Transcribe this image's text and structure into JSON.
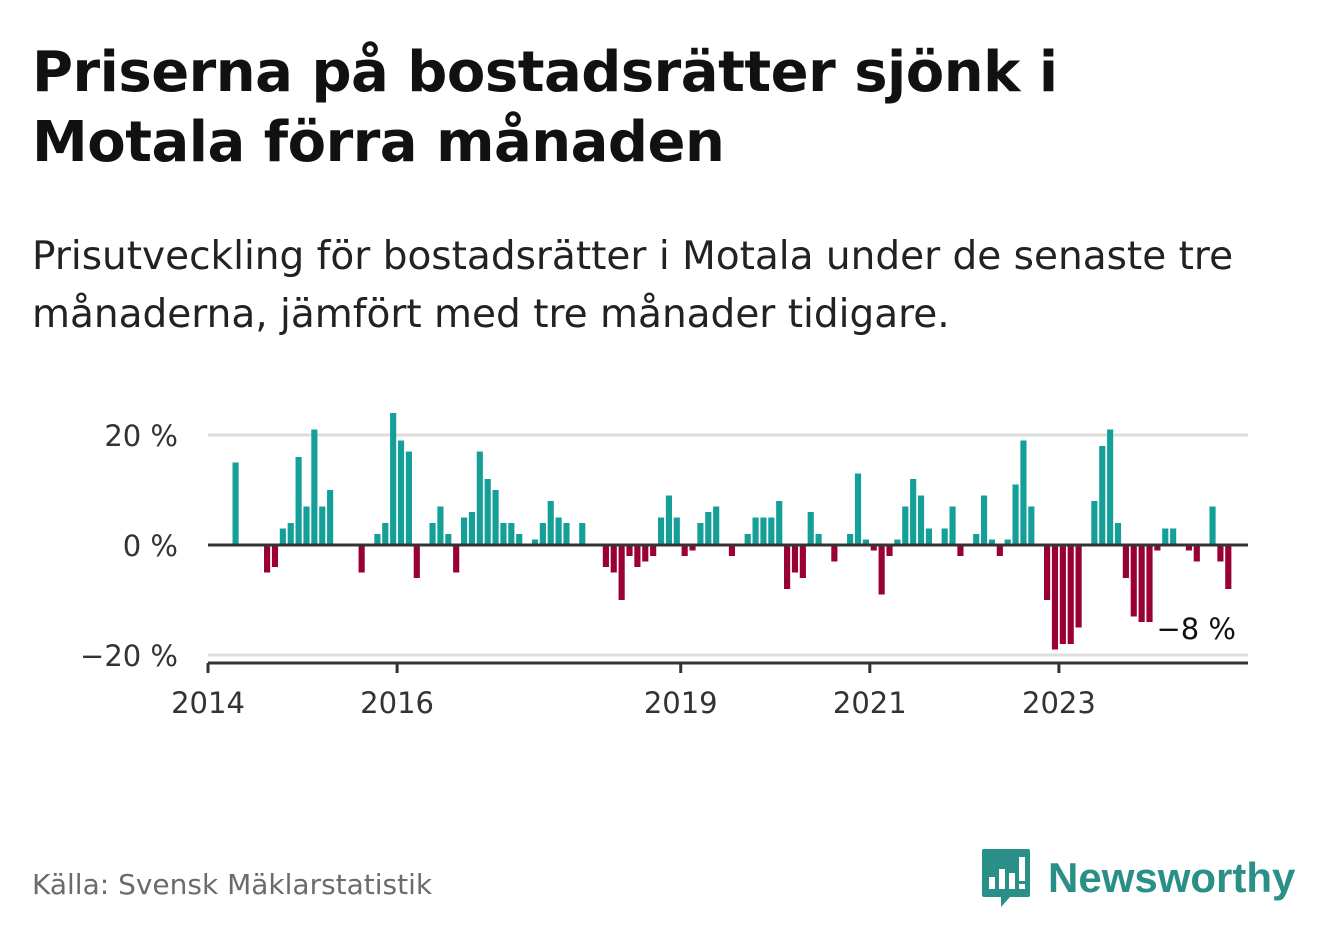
{
  "title": "Priserna på bostadsrätter sjönk i Motala förra månaden",
  "subtitle": "Prisutveckling för bostadsrätter i Motala under de senaste tre månaderna, jämfört med tre månader tidigare.",
  "source": "Källa: Svensk Mäklarstatistik",
  "brand": "Newsworthy",
  "colors": {
    "positive": "#14a098",
    "negative": "#990036",
    "brand": "#2a8f86",
    "gridline": "#dddddd",
    "axis": "#333333"
  },
  "chart_data": {
    "type": "bar",
    "x_start": "2014-01",
    "x_end": "2024-12",
    "first_month": "2014-04",
    "y_ticks": [
      20,
      0,
      -20
    ],
    "y_tick_labels": [
      "20 %",
      "0 %",
      "−20 %"
    ],
    "x_ticks": [
      "2014",
      "2016",
      "2019",
      "2021",
      "2023"
    ],
    "ylim": [
      -21,
      24
    ],
    "last_label": "−8 %",
    "values": [
      15,
      0,
      0,
      0,
      -5,
      -4,
      3,
      4,
      16,
      7,
      21,
      7,
      10,
      0,
      0,
      0,
      -5,
      0,
      2,
      4,
      24,
      19,
      17,
      -6,
      0,
      4,
      7,
      2,
      -5,
      5,
      6,
      17,
      12,
      10,
      4,
      4,
      2,
      0,
      1,
      4,
      8,
      5,
      4,
      0,
      4,
      0,
      0,
      -4,
      -5,
      -10,
      -2,
      -4,
      -3,
      -2,
      5,
      9,
      5,
      -2,
      -1,
      4,
      6,
      7,
      0,
      -2,
      0,
      2,
      5,
      5,
      5,
      8,
      -8,
      -5,
      -6,
      6,
      2,
      0,
      -3,
      0,
      2,
      13,
      1,
      -1,
      -9,
      -2,
      1,
      7,
      12,
      9,
      3,
      0,
      3,
      7,
      -2,
      0,
      2,
      9,
      1,
      -2,
      1,
      11,
      19,
      7,
      0,
      -10,
      -19,
      -18,
      -18,
      -15,
      0,
      8,
      18,
      21,
      4,
      -6,
      -13,
      -14,
      -14,
      -1,
      3,
      3,
      0,
      -1,
      -3,
      0,
      7,
      -3,
      -8
    ]
  }
}
